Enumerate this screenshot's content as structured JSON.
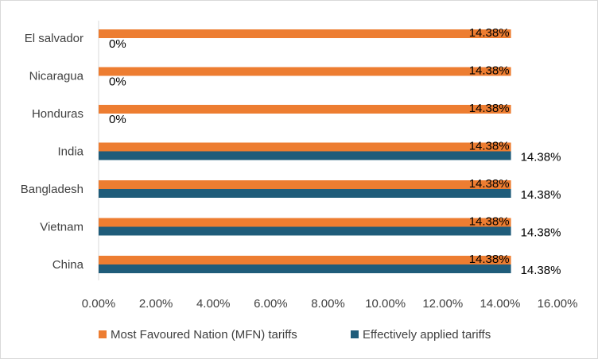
{
  "chart_data": {
    "type": "bar",
    "orientation": "horizontal",
    "categories": [
      "El salvador",
      "Nicaragua",
      "Honduras",
      "India",
      "Bangladesh",
      "Vietnam",
      "China"
    ],
    "series": [
      {
        "name": "Most Favoured Nation (MFN) tariffs",
        "color": "#ED7D31",
        "values": [
          14.38,
          14.38,
          14.38,
          14.38,
          14.38,
          14.38,
          14.38
        ],
        "labels": [
          "14.38%",
          "14.38%",
          "14.38%",
          "14.38%",
          "14.38%",
          "14.38%",
          "14.38%"
        ]
      },
      {
        "name": "Effectively applied tariffs",
        "color": "#1F5C7A",
        "values": [
          0,
          0,
          0,
          14.38,
          14.38,
          14.38,
          14.38
        ],
        "labels": [
          "0%",
          "0%",
          "0%",
          "14.38%",
          "14.38%",
          "14.38%",
          "14.38%"
        ]
      }
    ],
    "xlim": [
      0,
      16
    ],
    "xticks": [
      0,
      2,
      4,
      6,
      8,
      10,
      12,
      14,
      16
    ],
    "xtick_labels": [
      "0.00%",
      "2.00%",
      "4.00%",
      "6.00%",
      "8.00%",
      "10.00%",
      "12.00%",
      "14.00%",
      "16.00%"
    ],
    "grid": false,
    "legend_position": "bottom"
  }
}
